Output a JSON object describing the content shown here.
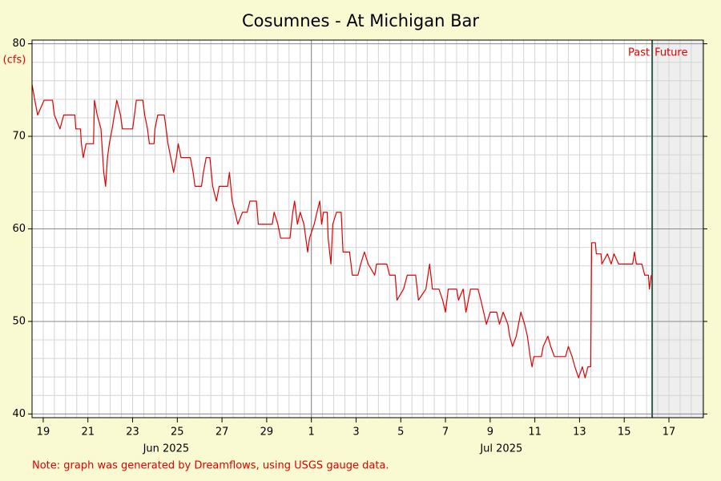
{
  "chart_data": {
    "type": "line",
    "title": "Cosumnes - At Michigan Bar",
    "y_unit_label": "(cfs)",
    "note": "Note: graph was generated by Dreamflows, using USGS gauge data.",
    "past_label": "Past",
    "future_label": "Future",
    "now": "2025-07-16T06:00",
    "grid": true,
    "xlim": [
      "2025-06-18T12:00",
      "2025-07-18T13:00"
    ],
    "ylim": [
      39.6,
      80.4
    ],
    "yticks": [
      40,
      50,
      60,
      70,
      80
    ],
    "yminorticks": [
      42,
      44,
      46,
      48,
      52,
      54,
      56,
      58,
      62,
      64,
      66,
      68,
      72,
      74,
      76,
      78
    ],
    "xminor_step_hours": 12,
    "xticks": [
      {
        "value": "2025-06-19T00:00",
        "label": "19"
      },
      {
        "value": "2025-06-21T00:00",
        "label": "21"
      },
      {
        "value": "2025-06-23T00:00",
        "label": "23"
      },
      {
        "value": "2025-06-25T00:00",
        "label": "25"
      },
      {
        "value": "2025-06-27T00:00",
        "label": "27"
      },
      {
        "value": "2025-06-29T00:00",
        "label": "29"
      },
      {
        "value": "2025-07-01T00:00",
        "label": "1"
      },
      {
        "value": "2025-07-03T00:00",
        "label": "3"
      },
      {
        "value": "2025-07-05T00:00",
        "label": "5"
      },
      {
        "value": "2025-07-07T00:00",
        "label": "7"
      },
      {
        "value": "2025-07-09T00:00",
        "label": "9"
      },
      {
        "value": "2025-07-11T00:00",
        "label": "11"
      },
      {
        "value": "2025-07-13T00:00",
        "label": "13"
      },
      {
        "value": "2025-07-15T00:00",
        "label": "15"
      },
      {
        "value": "2025-07-17T00:00",
        "label": "17"
      }
    ],
    "month_labels": [
      {
        "value": "2025-06-24T12:00",
        "label": "Jun 2025"
      },
      {
        "value": "2025-07-09T12:00",
        "label": "Jul 2025"
      }
    ],
    "month_boundary": "2025-07-01T00:00",
    "x": [
      "2025-06-18T12:00",
      "2025-06-18T15:00",
      "2025-06-18T18:00",
      "2025-06-19T01:00",
      "2025-06-19T10:00",
      "2025-06-19T12:00",
      "2025-06-19T18:00",
      "2025-06-19T22:00",
      "2025-06-20T10:00",
      "2025-06-20T11:00",
      "2025-06-20T16:00",
      "2025-06-20T17:00",
      "2025-06-20T19:00",
      "2025-06-20T22:00",
      "2025-06-21T06:00",
      "2025-06-21T07:00",
      "2025-06-21T10:00",
      "2025-06-21T14:00",
      "2025-06-21T17:00",
      "2025-06-21T19:00",
      "2025-06-21T21:00",
      "2025-06-21T23:00",
      "2025-06-22T02:00",
      "2025-06-22T07:00",
      "2025-06-22T11:00",
      "2025-06-22T13:00",
      "2025-06-23T00:00",
      "2025-06-23T02:00",
      "2025-06-23T04:00",
      "2025-06-23T11:00",
      "2025-06-23T13:00",
      "2025-06-23T16:00",
      "2025-06-23T18:00",
      "2025-06-23T23:00",
      "2025-06-24T00:00",
      "2025-06-24T03:00",
      "2025-06-24T10:00",
      "2025-06-24T12:00",
      "2025-06-24T14:00",
      "2025-06-24T17:00",
      "2025-06-24T20:00",
      "2025-06-24T23:00",
      "2025-06-25T01:00",
      "2025-06-25T04:00",
      "2025-06-25T14:00",
      "2025-06-25T17:00",
      "2025-06-25T19:00",
      "2025-06-26T02:00",
      "2025-06-26T04:00",
      "2025-06-26T07:00",
      "2025-06-26T11:00",
      "2025-06-26T14:00",
      "2025-06-26T18:00",
      "2025-06-26T21:00",
      "2025-06-27T06:00",
      "2025-06-27T08:00",
      "2025-06-27T11:00",
      "2025-06-27T14:00",
      "2025-06-27T17:00",
      "2025-06-27T22:00",
      "2025-06-28T03:00",
      "2025-06-28T06:00",
      "2025-06-28T13:00",
      "2025-06-28T15:00",
      "2025-06-29T06:00",
      "2025-06-29T08:00",
      "2025-06-29T12:00",
      "2025-06-29T15:00",
      "2025-06-30T01:00",
      "2025-06-30T04:00",
      "2025-06-30T06:00",
      "2025-06-30T09:00",
      "2025-06-30T12:00",
      "2025-06-30T16:00",
      "2025-06-30T18:00",
      "2025-06-30T20:00",
      "2025-06-30T22:00",
      "2025-07-01T03:00",
      "2025-07-01T06:00",
      "2025-07-01T09:00",
      "2025-07-01T11:00",
      "2025-07-01T13:00",
      "2025-07-01T17:00",
      "2025-07-01T18:00",
      "2025-07-01T21:00",
      "2025-07-01T23:00",
      "2025-07-02T03:00",
      "2025-07-02T08:00",
      "2025-07-02T10:00",
      "2025-07-02T17:00",
      "2025-07-02T20:00",
      "2025-07-03T02:00",
      "2025-07-03T05:00",
      "2025-07-03T09:00",
      "2025-07-03T13:00",
      "2025-07-03T20:00",
      "2025-07-03T22:00",
      "2025-07-04T09:00",
      "2025-07-04T12:00",
      "2025-07-04T18:00",
      "2025-07-04T20:00",
      "2025-07-05T03:00",
      "2025-07-05T07:00",
      "2025-07-05T16:00",
      "2025-07-05T19:00",
      "2025-07-06T03:00",
      "2025-07-06T07:00",
      "2025-07-06T10:00",
      "2025-07-06T17:00",
      "2025-07-06T21:00",
      "2025-07-07T00:00",
      "2025-07-07T03:00",
      "2025-07-07T12:00",
      "2025-07-07T14:00",
      "2025-07-07T19:00",
      "2025-07-07T22:00",
      "2025-07-08T03:00",
      "2025-07-08T11:00",
      "2025-07-08T14:00",
      "2025-07-08T17:00",
      "2025-07-08T20:00",
      "2025-07-09T00:00",
      "2025-07-09T07:00",
      "2025-07-09T10:00",
      "2025-07-09T14:00",
      "2025-07-09T19:00",
      "2025-07-09T21:00",
      "2025-07-10T00:00",
      "2025-07-10T04:00",
      "2025-07-10T09:00",
      "2025-07-10T13:00",
      "2025-07-10T16:00",
      "2025-07-10T19:00",
      "2025-07-10T21:00",
      "2025-07-10T23:00",
      "2025-07-11T07:00",
      "2025-07-11T09:00",
      "2025-07-11T14:00",
      "2025-07-11T17:00",
      "2025-07-11T21:00",
      "2025-07-12T09:00",
      "2025-07-12T12:00",
      "2025-07-12T16:00",
      "2025-07-12T19:00",
      "2025-07-12T23:00",
      "2025-07-13T03:00",
      "2025-07-13T06:00",
      "2025-07-13T09:00",
      "2025-07-13T12:00",
      "2025-07-13T13:00",
      "2025-07-13T17:00",
      "2025-07-13T18:00",
      "2025-07-13T23:00",
      "2025-07-14T00:00",
      "2025-07-14T06:00",
      "2025-07-14T10:00",
      "2025-07-14T13:00",
      "2025-07-14T18:00",
      "2025-07-15T09:00",
      "2025-07-15T11:00",
      "2025-07-15T13:00",
      "2025-07-15T19:00",
      "2025-07-15T22:00",
      "2025-07-16T02:00",
      "2025-07-16T03:00",
      "2025-07-16T05:00"
    ],
    "series": [
      {
        "name": "Cosumnes - At Michigan Bar",
        "color": "#e00000",
        "values": [
          75.6,
          73.9,
          72.3,
          73.9,
          73.9,
          72.3,
          70.8,
          72.3,
          72.3,
          70.8,
          70.8,
          69.2,
          67.7,
          69.2,
          69.2,
          73.9,
          72.3,
          70.8,
          66.1,
          64.6,
          67.7,
          69.2,
          70.8,
          73.9,
          72.3,
          70.8,
          70.8,
          72.3,
          73.9,
          73.9,
          72.3,
          70.8,
          69.2,
          69.2,
          70.8,
          72.3,
          72.3,
          70.8,
          69.2,
          67.7,
          66.1,
          67.7,
          69.2,
          67.7,
          67.7,
          66.1,
          64.6,
          64.6,
          66.1,
          67.7,
          67.7,
          64.6,
          63.0,
          64.6,
          64.6,
          66.1,
          63.0,
          61.8,
          60.5,
          61.8,
          61.8,
          63.0,
          63.0,
          60.5,
          60.5,
          61.8,
          60.5,
          59.0,
          59.0,
          61.8,
          63.0,
          60.5,
          61.8,
          60.5,
          59.0,
          57.5,
          59.0,
          60.5,
          61.8,
          63.0,
          60.5,
          61.8,
          61.8,
          59.0,
          56.2,
          60.5,
          61.8,
          61.8,
          57.5,
          57.5,
          55.0,
          55.0,
          56.2,
          57.5,
          56.2,
          55.0,
          56.2,
          56.2,
          55.0,
          55.0,
          52.3,
          53.5,
          55.0,
          55.0,
          52.3,
          53.5,
          56.2,
          53.5,
          53.5,
          52.3,
          51.0,
          53.5,
          53.5,
          52.3,
          53.5,
          51.0,
          53.5,
          53.5,
          52.3,
          51.0,
          49.7,
          51.0,
          51.0,
          49.7,
          51.0,
          49.7,
          48.4,
          47.3,
          48.4,
          51.0,
          49.7,
          48.4,
          46.2,
          45.1,
          46.2,
          46.2,
          47.3,
          48.4,
          47.3,
          46.2,
          46.2,
          47.3,
          46.2,
          45.1,
          43.9,
          45.1,
          43.9,
          45.1,
          45.1,
          58.5,
          58.5,
          57.3,
          57.3,
          56.2,
          57.3,
          56.2,
          57.3,
          56.2,
          56.2,
          57.5,
          56.2,
          56.2,
          55.0,
          55.0,
          53.5,
          55.0
        ]
      }
    ]
  }
}
